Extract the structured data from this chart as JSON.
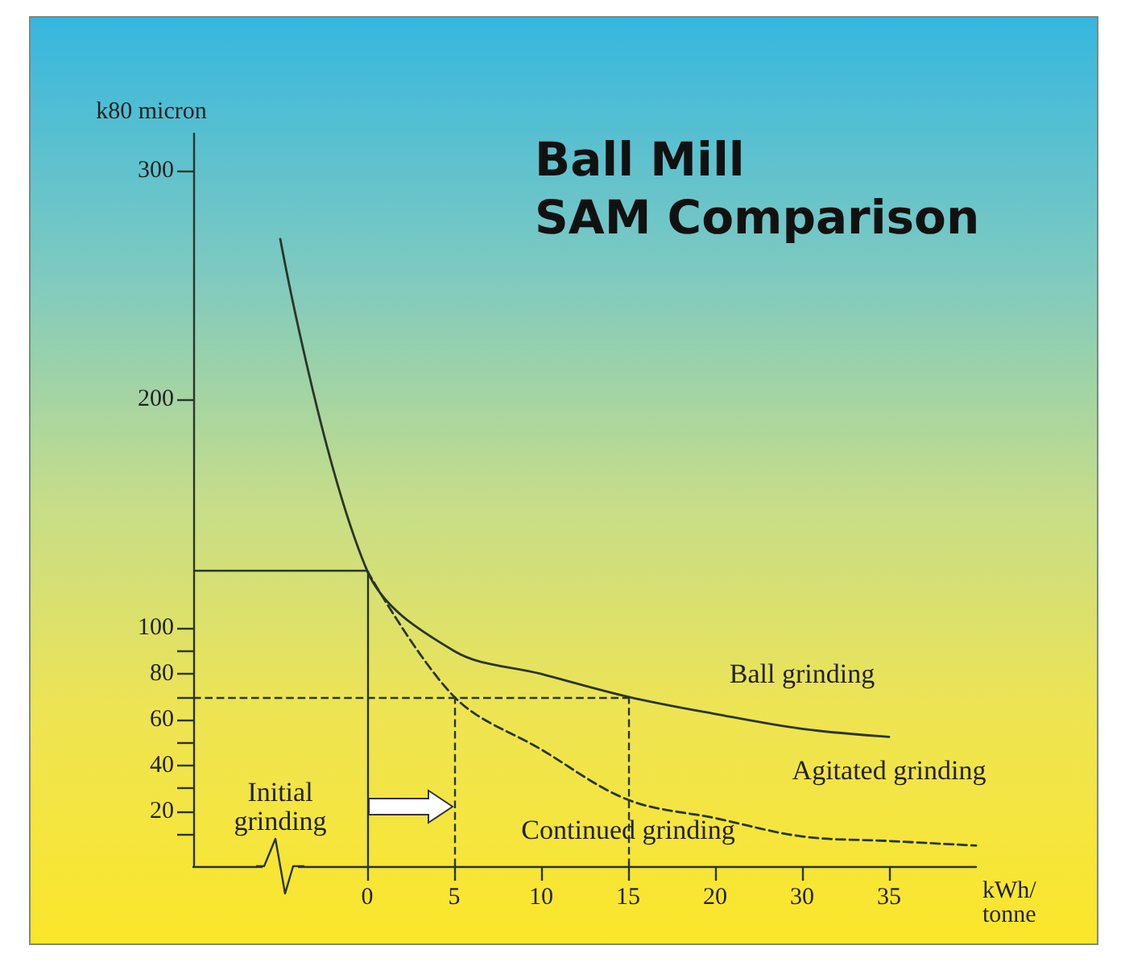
{
  "chart_data": {
    "type": "line",
    "title": "Ball Mill\nSAM Comparison",
    "ylabel": "k80 micron",
    "xlabel": "kWh/\ntonne",
    "categories": [
      null,
      null,
      "0",
      "5",
      "10",
      "15",
      "20",
      "30",
      "35",
      null
    ],
    "ylim": [
      -4,
      316
    ],
    "yticks": [
      {
        "value": 10,
        "label": null
      },
      20,
      {
        "value": 30,
        "label": null
      },
      40,
      {
        "value": 50,
        "label": null
      },
      60,
      {
        "value": 70,
        "label": null
      },
      80,
      {
        "value": 90,
        "label": null
      },
      100,
      200,
      300
    ],
    "marker": "none",
    "grid": false,
    "series": [
      {
        "color": "#2a3528",
        "line_style": "solid",
        "values": [
          null,
          270,
          125,
          90,
          80,
          70,
          62.5,
          56,
          52.5,
          null
        ]
      },
      {
        "color": "#2a3528",
        "line_style": "dashed",
        "values": [
          null,
          null,
          125,
          70,
          47,
          25,
          17,
          9,
          7,
          5
        ]
      }
    ],
    "ref_lines": [
      {
        "axis": "x",
        "value": "0",
        "line_style": "solid"
      },
      {
        "axis": "y",
        "value": 125,
        "line_style": "solid"
      },
      {
        "axis": "y",
        "value": 70,
        "line_style": "dashed"
      },
      {
        "axis": "x",
        "value": "5",
        "line_style": "dashed"
      },
      {
        "axis": "x",
        "value": "15",
        "line_style": "dashed"
      }
    ],
    "annotations": [
      "Ball grinding",
      "Agitated grinding",
      "Continued grinding",
      "Initial\ngrinding"
    ]
  }
}
